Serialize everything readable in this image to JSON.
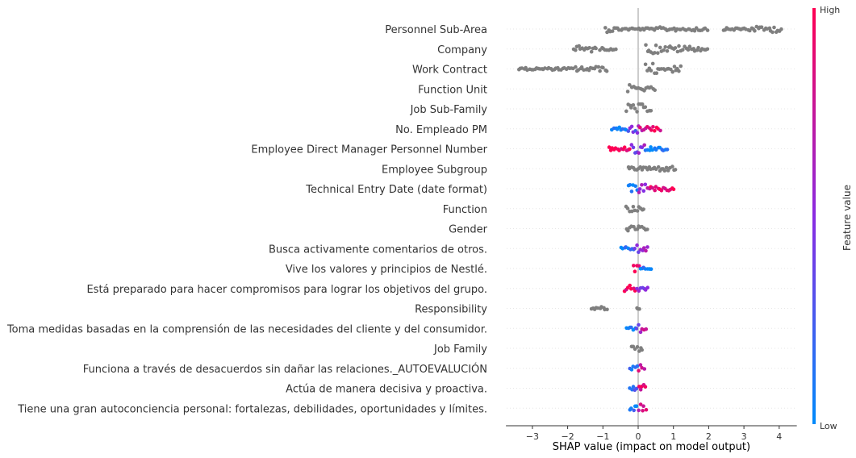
{
  "chart_data": {
    "type": "scatter",
    "subtype": "shap-beeswarm",
    "xlabel": "SHAP value (impact on model output)",
    "xticks": [
      -3,
      -2,
      -1,
      0,
      1,
      2,
      3,
      4
    ],
    "xlim": [
      -3.75,
      4.5
    ],
    "colorbar": {
      "title": "Feature value",
      "high_label": "High",
      "low_label": "Low",
      "high_color": "#ff0052",
      "low_color": "#008bfb"
    },
    "gray_color": "#7f7f7f",
    "features": [
      {
        "name": "Personnel Sub-Area",
        "colored": false,
        "segments": [
          [
            -0.95,
            -0.65,
            4
          ],
          [
            -0.65,
            -0.3,
            2
          ],
          [
            -0.3,
            0.6,
            1.5
          ],
          [
            0.6,
            2.0,
            2.5
          ],
          [
            2.4,
            3.0,
            1.5
          ],
          [
            3.0,
            3.8,
            3
          ],
          [
            3.8,
            4.1,
            4
          ]
        ]
      },
      {
        "name": "Company",
        "colored": false,
        "segments": [
          [
            -1.85,
            -1.15,
            4
          ],
          [
            -1.1,
            -0.6,
            1.5
          ],
          [
            0.2,
            0.6,
            6
          ],
          [
            0.6,
            1.5,
            4
          ],
          [
            1.5,
            2.0,
            2.5
          ]
        ]
      },
      {
        "name": "Work Contract",
        "colored": false,
        "segments": [
          [
            -3.4,
            -1.8,
            1.5
          ],
          [
            -1.8,
            -0.85,
            3
          ],
          [
            0.2,
            0.55,
            7
          ],
          [
            0.55,
            0.9,
            2
          ],
          [
            0.9,
            1.25,
            4
          ]
        ]
      },
      {
        "name": "Function Unit",
        "colored": false,
        "segments": [
          [
            -0.3,
            0.05,
            5
          ],
          [
            0.05,
            0.5,
            2.5
          ]
        ]
      },
      {
        "name": "Job Sub-Family",
        "colored": false,
        "segments": [
          [
            -0.35,
            0.2,
            6
          ],
          [
            0.2,
            0.4,
            3
          ]
        ]
      },
      {
        "name": "No. Empleado PM",
        "colored": true,
        "segments": [
          [
            -0.75,
            -0.3,
            2,
            -0.9
          ],
          [
            -0.3,
            0.0,
            5,
            -0.2
          ],
          [
            0.0,
            0.3,
            5,
            0.5
          ],
          [
            0.3,
            0.65,
            2.5,
            0.9
          ]
        ]
      },
      {
        "name": "Employee Direct Manager Personnel Number",
        "colored": true,
        "segments": [
          [
            -0.85,
            -0.2,
            2.5,
            0.9
          ],
          [
            -0.2,
            0.2,
            6,
            0.0
          ],
          [
            0.2,
            0.85,
            2.5,
            -0.9
          ]
        ]
      },
      {
        "name": "Employee Subgroup",
        "colored": false,
        "segments": [
          [
            -0.3,
            0.0,
            2
          ],
          [
            0.0,
            0.4,
            3
          ],
          [
            0.4,
            1.1,
            3
          ]
        ]
      },
      {
        "name": "Technical Entry Date (date format)",
        "colored": true,
        "segments": [
          [
            -0.3,
            0.0,
            5,
            -0.9
          ],
          [
            0.0,
            0.35,
            6,
            0.3
          ],
          [
            0.35,
            1.05,
            2.5,
            0.9
          ]
        ]
      },
      {
        "name": "Function",
        "colored": false,
        "segments": [
          [
            -0.35,
            0.2,
            4
          ]
        ]
      },
      {
        "name": "Gender",
        "colored": false,
        "segments": [
          [
            -0.35,
            0.3,
            3
          ]
        ]
      },
      {
        "name": "Busca activamente comentarios de otros.",
        "colored": true,
        "segments": [
          [
            -0.5,
            -0.1,
            2,
            -0.9
          ],
          [
            -0.1,
            0.1,
            5,
            0.0
          ],
          [
            0.1,
            0.3,
            3,
            0.2
          ]
        ]
      },
      {
        "name": "Vive los valores y principios de Nestlé.",
        "colored": true,
        "segments": [
          [
            -0.15,
            0.05,
            4,
            0.7
          ],
          [
            0.05,
            0.4,
            2,
            -0.9
          ]
        ]
      },
      {
        "name": "Está preparado para hacer compromisos para lograr los objetivos del grupo.",
        "colored": true,
        "segments": [
          [
            -0.4,
            -0.05,
            4,
            0.9
          ],
          [
            -0.05,
            0.1,
            6,
            0.1
          ],
          [
            0.1,
            0.3,
            3,
            0.0
          ]
        ]
      },
      {
        "name": "Responsibility",
        "colored": false,
        "segments": [
          [
            -1.35,
            -0.85,
            2
          ],
          [
            -0.05,
            0.05,
            4
          ]
        ]
      },
      {
        "name": "Toma medidas basadas en la comprensión de las necesidades del cliente y del consumidor.",
        "colored": true,
        "segments": [
          [
            -0.35,
            -0.05,
            2.5,
            -0.9
          ],
          [
            -0.05,
            0.1,
            5,
            0.0
          ],
          [
            0.1,
            0.25,
            2.5,
            0.8
          ]
        ]
      },
      {
        "name": "Job Family",
        "colored": false,
        "segments": [
          [
            -0.2,
            0.15,
            4
          ]
        ]
      },
      {
        "name": "Funciona a través de desacuerdos sin dañar las relaciones._AUTOEVALUCIÓN",
        "colored": true,
        "segments": [
          [
            -0.25,
            0.0,
            3,
            -0.8
          ],
          [
            0.0,
            0.2,
            5,
            0.5
          ]
        ]
      },
      {
        "name": "Actúa de manera decisiva y proactiva.",
        "colored": true,
        "segments": [
          [
            -0.25,
            0.0,
            3,
            -0.7
          ],
          [
            0.0,
            0.25,
            5,
            0.6
          ]
        ]
      },
      {
        "name": "Tiene una gran autoconciencia personal: fortalezas, debilidades, oportunidades y límites.",
        "colored": true,
        "segments": [
          [
            -0.25,
            0.0,
            3,
            -0.7
          ],
          [
            0.0,
            0.25,
            5,
            0.6
          ]
        ]
      }
    ]
  }
}
